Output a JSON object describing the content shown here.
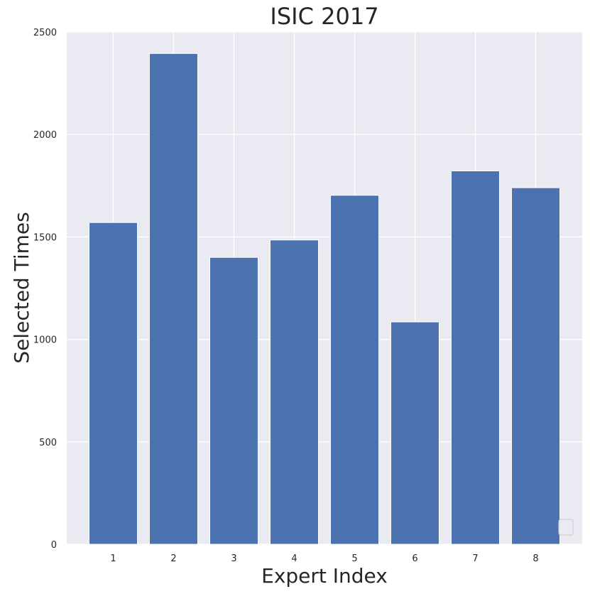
{
  "chart_data": {
    "type": "bar",
    "title": "ISIC 2017",
    "xlabel": "Expert Index",
    "ylabel": "Selected Times",
    "categories": [
      "1",
      "2",
      "3",
      "4",
      "5",
      "6",
      "7",
      "8"
    ],
    "values": [
      1570,
      2395,
      1400,
      1485,
      1703,
      1085,
      1822,
      1740
    ],
    "ylim": [
      0,
      2500
    ],
    "yticks": [
      "0",
      "500",
      "1000",
      "1500",
      "2000",
      "2500"
    ],
    "grid": true,
    "legend": "bottom-right, empty",
    "colors": {
      "bar": "#4c72b0",
      "background": "#eaeaf2",
      "grid": "#ffffff"
    }
  }
}
